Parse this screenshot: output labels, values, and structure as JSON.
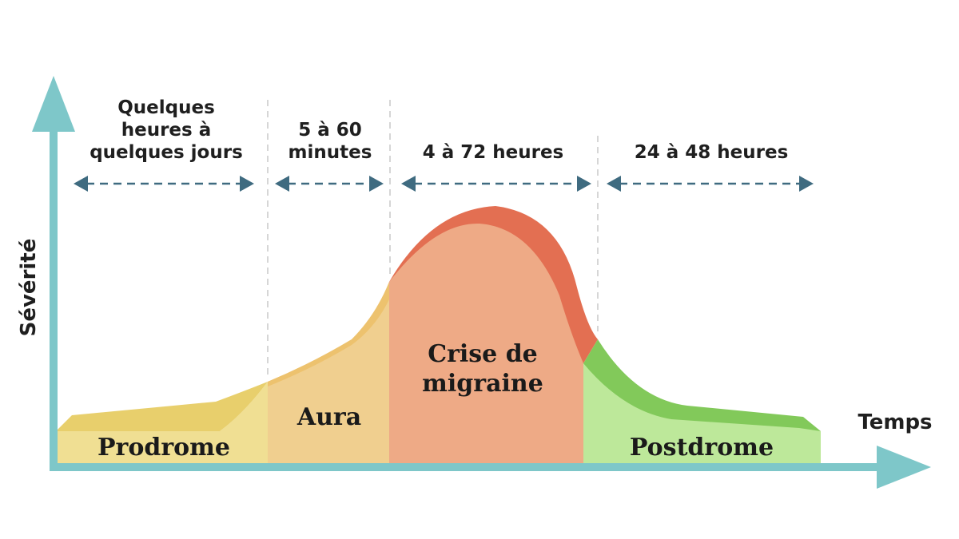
{
  "axes": {
    "y_label": "Sévérité",
    "x_label": "Temps"
  },
  "phases": [
    {
      "name": "Prodrome",
      "duration_lines": [
        "Quelques",
        "heures à",
        "quelques jours"
      ]
    },
    {
      "name": "Aura",
      "duration_lines": [
        "5 à 60",
        "minutes"
      ]
    },
    {
      "name_lines": [
        "Crise de",
        "migraine"
      ],
      "duration_lines": [
        "4 à 72 heures"
      ]
    },
    {
      "name": "Postdrome",
      "duration_lines": [
        "24 à 48 heures"
      ]
    }
  ],
  "colors": {
    "axis": "#7ec7c9",
    "arrow": "#3f6b80",
    "prodrome": "#f0df93",
    "prodrome_top": "#e8cf6c",
    "aura": "#f0cf8f",
    "aura_top": "#edc26e",
    "crisis": "#eeaa86",
    "crisis_top": "#e36f52",
    "postdrome": "#bde89a",
    "postdrome_top": "#82c95a",
    "divider": "#c8c8c8"
  }
}
